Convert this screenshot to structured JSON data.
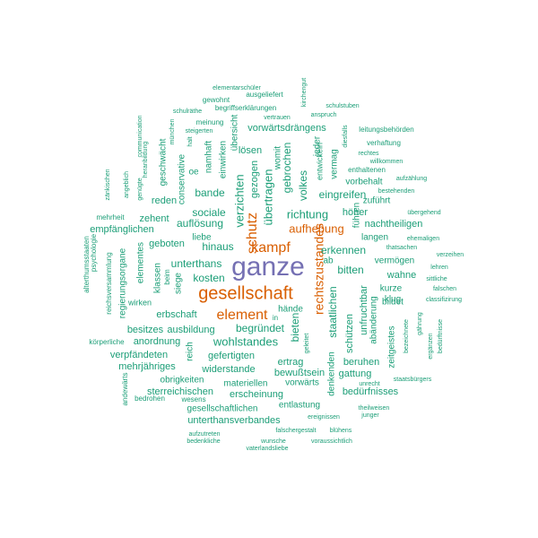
{
  "colors": {
    "background": "#ffffff",
    "green": "#1b9e77",
    "orange": "#d95f02",
    "purple": "#7570b3"
  },
  "words": [
    {
      "text": "ganze",
      "color": "purple"
    },
    {
      "text": "gesellschaft",
      "color": "orange"
    },
    {
      "text": "kampf",
      "color": "orange"
    },
    {
      "text": "schutz",
      "color": "orange"
    },
    {
      "text": "element",
      "color": "orange"
    },
    {
      "text": "rechtszustandes",
      "color": "orange"
    },
    {
      "text": "aufhebung",
      "color": "orange"
    },
    {
      "text": "richtung",
      "color": "green"
    },
    {
      "text": "übertragen",
      "color": "green"
    },
    {
      "text": "verzichten",
      "color": "green"
    },
    {
      "text": "erkennen",
      "color": "green"
    },
    {
      "text": "hinaus",
      "color": "green"
    },
    {
      "text": "unterthans",
      "color": "green"
    },
    {
      "text": "kosten",
      "color": "green"
    },
    {
      "text": "sociale",
      "color": "green"
    },
    {
      "text": "auflösung",
      "color": "green"
    },
    {
      "text": "bande",
      "color": "green"
    },
    {
      "text": "eingreifen",
      "color": "green"
    },
    {
      "text": "volkes",
      "color": "green"
    },
    {
      "text": "gebrochen",
      "color": "green"
    },
    {
      "text": "gezogen",
      "color": "green"
    },
    {
      "text": "staatlichen",
      "color": "green"
    },
    {
      "text": "bitten",
      "color": "green"
    },
    {
      "text": "begründet",
      "color": "green"
    },
    {
      "text": "wohlstandes",
      "color": "green"
    },
    {
      "text": "bieten",
      "color": "green"
    },
    {
      "text": "erbschaft",
      "color": "green"
    },
    {
      "text": "ausbildung",
      "color": "green"
    },
    {
      "text": "schützen",
      "color": "green"
    },
    {
      "text": "unfruchtbar",
      "color": "green"
    },
    {
      "text": "gefertigten",
      "color": "green"
    },
    {
      "text": "widerstande",
      "color": "green"
    },
    {
      "text": "ertrag",
      "color": "green"
    },
    {
      "text": "bewußtsein",
      "color": "green"
    },
    {
      "text": "beruhen",
      "color": "green"
    },
    {
      "text": "gattung",
      "color": "green"
    },
    {
      "text": "materiellen",
      "color": "green"
    },
    {
      "text": "vorwärts",
      "color": "green"
    },
    {
      "text": "bedürfnisses",
      "color": "green"
    },
    {
      "text": "erscheinung",
      "color": "green"
    },
    {
      "text": "gesellschaftlichen",
      "color": "green"
    },
    {
      "text": "unterthansverbandes",
      "color": "green"
    },
    {
      "text": "entlastung",
      "color": "green"
    },
    {
      "text": "sterreichischen",
      "color": "green"
    },
    {
      "text": "obrigkeiten",
      "color": "green"
    },
    {
      "text": "mehrjähriges",
      "color": "green"
    },
    {
      "text": "verpfändeten",
      "color": "green"
    },
    {
      "text": "anordnung",
      "color": "green"
    },
    {
      "text": "besitzes",
      "color": "green"
    },
    {
      "text": "regierungsorgane",
      "color": "green"
    },
    {
      "text": "elementes",
      "color": "green"
    },
    {
      "text": "klassen",
      "color": "green"
    },
    {
      "text": "geboten",
      "color": "green"
    },
    {
      "text": "empfänglichen",
      "color": "green"
    },
    {
      "text": "zehent",
      "color": "green"
    },
    {
      "text": "mehrheit",
      "color": "green"
    },
    {
      "text": "reden",
      "color": "green"
    },
    {
      "text": "liebe",
      "color": "green"
    },
    {
      "text": "geschwächt",
      "color": "green"
    },
    {
      "text": "conservative",
      "color": "green"
    },
    {
      "text": "oe",
      "color": "green"
    },
    {
      "text": "namhaft",
      "color": "green"
    },
    {
      "text": "einwirken",
      "color": "green"
    },
    {
      "text": "übersicht",
      "color": "green"
    },
    {
      "text": "lösen",
      "color": "green"
    },
    {
      "text": "womit",
      "color": "green"
    },
    {
      "text": "jeder",
      "color": "green"
    },
    {
      "text": "vorwärtsdrängens",
      "color": "green"
    },
    {
      "text": "entwickeln",
      "color": "green"
    },
    {
      "text": "vermag",
      "color": "green"
    },
    {
      "text": "vorbehalt",
      "color": "green"
    },
    {
      "text": "höher",
      "color": "green"
    },
    {
      "text": "zuführt",
      "color": "green"
    },
    {
      "text": "führen",
      "color": "green"
    },
    {
      "text": "nachtheiligen",
      "color": "green"
    },
    {
      "text": "langen",
      "color": "green"
    },
    {
      "text": "ab",
      "color": "green"
    },
    {
      "text": "vermögen",
      "color": "green"
    },
    {
      "text": "wahne",
      "color": "green"
    },
    {
      "text": "kurze",
      "color": "green"
    },
    {
      "text": "klug",
      "color": "green"
    },
    {
      "text": "abänderung",
      "color": "green"
    },
    {
      "text": "bildet",
      "color": "green"
    },
    {
      "text": "zeitgeistes",
      "color": "green"
    },
    {
      "text": "hände",
      "color": "green"
    },
    {
      "text": "denkenden",
      "color": "green"
    },
    {
      "text": "reich",
      "color": "green"
    },
    {
      "text": "siege",
      "color": "green"
    },
    {
      "text": "beim",
      "color": "green"
    },
    {
      "text": "wirken",
      "color": "green"
    },
    {
      "text": "körperliche",
      "color": "green"
    },
    {
      "text": "bedrohen",
      "color": "green"
    },
    {
      "text": "wesens",
      "color": "green"
    },
    {
      "text": "andewärts",
      "color": "green"
    },
    {
      "text": "reichsversammlung",
      "color": "green"
    },
    {
      "text": "psychologie",
      "color": "green"
    },
    {
      "text": "alterthumsstaaten",
      "color": "green"
    },
    {
      "text": "zänkischen",
      "color": "green"
    },
    {
      "text": "angeblich",
      "color": "green"
    },
    {
      "text": "genügte",
      "color": "green"
    },
    {
      "text": "communication",
      "color": "green"
    },
    {
      "text": "heranbildung",
      "color": "green"
    },
    {
      "text": "münchen",
      "color": "green"
    },
    {
      "text": "halt",
      "color": "green"
    },
    {
      "text": "steigerten",
      "color": "green"
    },
    {
      "text": "meinung",
      "color": "green"
    },
    {
      "text": "schulräthe",
      "color": "green"
    },
    {
      "text": "begriffserklärungen",
      "color": "green"
    },
    {
      "text": "gewohnt",
      "color": "green"
    },
    {
      "text": "ausgeliefert",
      "color": "green"
    },
    {
      "text": "elementarschüler",
      "color": "green"
    },
    {
      "text": "kirchengut",
      "color": "green"
    },
    {
      "text": "schulstuben",
      "color": "green"
    },
    {
      "text": "vertrauen",
      "color": "green"
    },
    {
      "text": "anspruch",
      "color": "green"
    },
    {
      "text": "diesfalls",
      "color": "green"
    },
    {
      "text": "leitungsbehörden",
      "color": "green"
    },
    {
      "text": "verhaftung",
      "color": "green"
    },
    {
      "text": "rechtes",
      "color": "green"
    },
    {
      "text": "willkommen",
      "color": "green"
    },
    {
      "text": "enthaltenen",
      "color": "green"
    },
    {
      "text": "aufzählung",
      "color": "green"
    },
    {
      "text": "bestehenden",
      "color": "green"
    },
    {
      "text": "übergehend",
      "color": "green"
    },
    {
      "text": "ehemaligen",
      "color": "green"
    },
    {
      "text": "thatsachen",
      "color": "green"
    },
    {
      "text": "verzeihen",
      "color": "green"
    },
    {
      "text": "lehren",
      "color": "green"
    },
    {
      "text": "sittliche",
      "color": "green"
    },
    {
      "text": "falschen",
      "color": "green"
    },
    {
      "text": "classifizirung",
      "color": "green"
    },
    {
      "text": "gährung",
      "color": "green"
    },
    {
      "text": "ergänzen",
      "color": "green"
    },
    {
      "text": "bedürftnisse",
      "color": "green"
    },
    {
      "text": "bezeichnete",
      "color": "green"
    },
    {
      "text": "staatsbürgers",
      "color": "green"
    },
    {
      "text": "junger",
      "color": "green"
    },
    {
      "text": "theilweisen",
      "color": "green"
    },
    {
      "text": "unrecht",
      "color": "green"
    },
    {
      "text": "ereignissen",
      "color": "green"
    },
    {
      "text": "aufzutreten",
      "color": "green"
    },
    {
      "text": "falschergestalt",
      "color": "green"
    },
    {
      "text": "blühens",
      "color": "green"
    },
    {
      "text": "bedenkliche",
      "color": "green"
    },
    {
      "text": "wunsche",
      "color": "green"
    },
    {
      "text": "voraussichtlich",
      "color": "green"
    },
    {
      "text": "vaterlandsliebe",
      "color": "green"
    },
    {
      "text": "geleitet",
      "color": "green"
    },
    {
      "text": "in",
      "color": "green"
    }
  ]
}
